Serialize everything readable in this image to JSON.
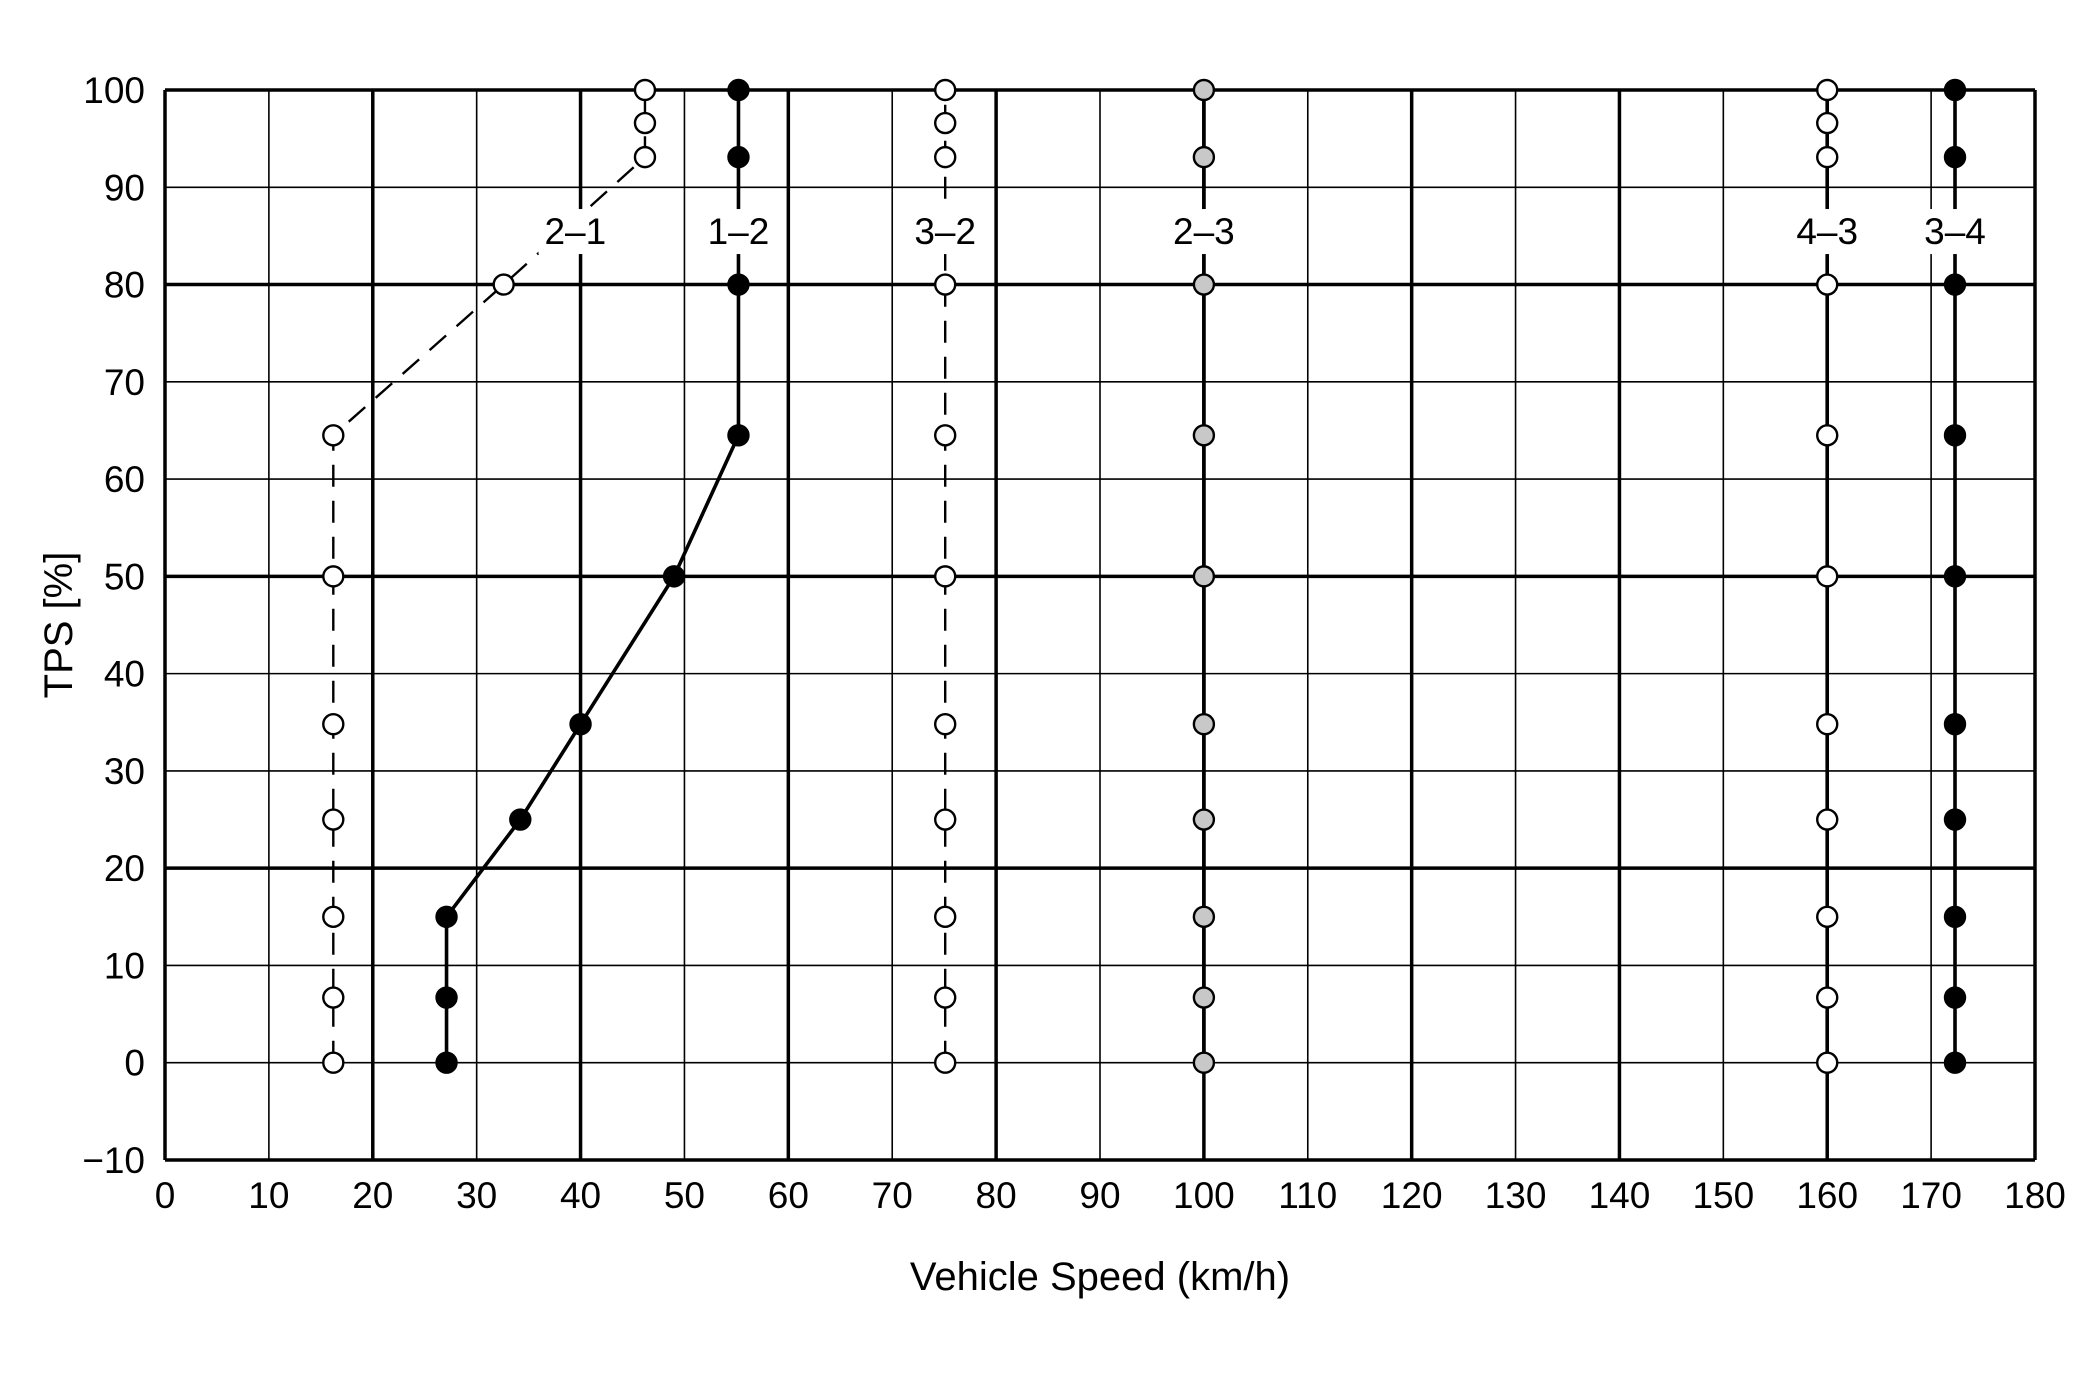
{
  "chart_data": {
    "type": "line",
    "title": "",
    "xlabel": "Vehicle Speed (km/h)",
    "ylabel": "TPS [%]",
    "xlim": [
      0,
      180
    ],
    "ylim": [
      -10,
      100
    ],
    "xticks": [
      0,
      10,
      20,
      30,
      40,
      50,
      60,
      70,
      80,
      90,
      100,
      110,
      120,
      130,
      140,
      150,
      160,
      170,
      180
    ],
    "yticks": [
      -10,
      0,
      10,
      20,
      30,
      40,
      50,
      60,
      70,
      80,
      90,
      100
    ],
    "x_major_every": 20,
    "y_major_every": 30,
    "grid": true,
    "series": [
      {
        "name": "2–1",
        "style": "dashed",
        "marker": "open",
        "points": [
          [
            16.2,
            0
          ],
          [
            16.2,
            6.7
          ],
          [
            16.2,
            15
          ],
          [
            16.2,
            25
          ],
          [
            16.2,
            34.8
          ],
          [
            16.2,
            50
          ],
          [
            16.2,
            64.5
          ],
          [
            32.6,
            80
          ],
          [
            46.2,
            93.1
          ],
          [
            46.2,
            96.6
          ],
          [
            46.2,
            100
          ]
        ]
      },
      {
        "name": "1–2",
        "style": "solid",
        "marker": "filled",
        "points": [
          [
            27.1,
            0
          ],
          [
            27.1,
            6.7
          ],
          [
            27.1,
            15
          ],
          [
            34.2,
            25
          ],
          [
            40,
            34.8
          ],
          [
            49,
            50
          ],
          [
            55.2,
            64.5
          ],
          [
            55.2,
            80
          ],
          [
            55.2,
            93.1
          ],
          [
            55.2,
            100
          ]
        ]
      },
      {
        "name": "3–2",
        "style": "dashed",
        "marker": "open",
        "points": [
          [
            75.1,
            0
          ],
          [
            75.1,
            6.7
          ],
          [
            75.1,
            15
          ],
          [
            75.1,
            25
          ],
          [
            75.1,
            34.8
          ],
          [
            75.1,
            50
          ],
          [
            75.1,
            64.5
          ],
          [
            75.1,
            80
          ],
          [
            75.1,
            93.1
          ],
          [
            75.1,
            96.6
          ],
          [
            75.1,
            100
          ]
        ]
      },
      {
        "name": "2–3",
        "style": "solid",
        "marker": "gray",
        "points": [
          [
            100,
            0
          ],
          [
            100,
            6.7
          ],
          [
            100,
            15
          ],
          [
            100,
            25
          ],
          [
            100,
            34.8
          ],
          [
            100,
            50
          ],
          [
            100,
            64.5
          ],
          [
            100,
            80
          ],
          [
            100,
            93.1
          ],
          [
            100,
            100
          ]
        ]
      },
      {
        "name": "4–3",
        "style": "solid",
        "marker": "open",
        "points": [
          [
            160,
            0
          ],
          [
            160,
            6.7
          ],
          [
            160,
            15
          ],
          [
            160,
            25
          ],
          [
            160,
            34.8
          ],
          [
            160,
            50
          ],
          [
            160,
            64.5
          ],
          [
            160,
            80
          ],
          [
            160,
            93.1
          ],
          [
            160,
            96.6
          ],
          [
            160,
            100
          ]
        ]
      },
      {
        "name": "3–4",
        "style": "solid",
        "marker": "filled",
        "points": [
          [
            172.3,
            0
          ],
          [
            172.3,
            6.7
          ],
          [
            172.3,
            15
          ],
          [
            172.3,
            25
          ],
          [
            172.3,
            34.8
          ],
          [
            172.3,
            50
          ],
          [
            172.3,
            64.5
          ],
          [
            172.3,
            80
          ],
          [
            172.3,
            93.1
          ],
          [
            172.3,
            100
          ]
        ]
      }
    ],
    "colors": {
      "line": "#000000",
      "gray_marker": "#c8c8c8",
      "open_marker": "#ffffff",
      "background": "#ffffff"
    }
  }
}
